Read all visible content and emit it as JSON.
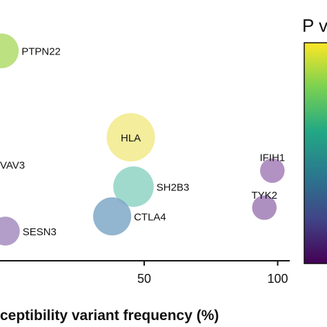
{
  "chart_data": {
    "type": "scatter",
    "title": "",
    "xlabel": "ceptibility variant frequency (%)",
    "ylabel": "",
    "xlim": [
      -4,
      104
    ],
    "xticks": [
      {
        "value": 50,
        "label": "50"
      },
      {
        "value": 100,
        "label": "100"
      }
    ],
    "ylim": [
      0,
      1
    ],
    "colorbar": {
      "title": "P v",
      "colormap": "viridis",
      "ticks": 5
    },
    "points": [
      {
        "label": "PTPN22",
        "x": -3.5,
        "y": 0.85,
        "size": 0.52,
        "color": "#b0dc6b"
      },
      {
        "label": "HLA",
        "x": 45,
        "y": 0.5,
        "size": 1.0,
        "color": "#f2ea8a"
      },
      {
        "label": "SH2B3",
        "x": 46,
        "y": 0.3,
        "size": 0.7,
        "color": "#8fd4c4"
      },
      {
        "label": "CTLA4",
        "x": 38,
        "y": 0.18,
        "size": 0.62,
        "color": "#7fa8c8"
      },
      {
        "label": "SESN3",
        "x": -2,
        "y": 0.12,
        "size": 0.36,
        "color": "#a58dc0"
      },
      {
        "label": "IFIH1",
        "x": 98,
        "y": 0.365,
        "size": 0.26,
        "color": "#a47fb8"
      },
      {
        "label": "TYK2",
        "x": 95,
        "y": 0.215,
        "size": 0.26,
        "color": "#a07cb5"
      },
      {
        "label": "VAV3",
        "x": -8,
        "y": 0.39,
        "size": 0,
        "color": "#ffffff"
      }
    ]
  }
}
